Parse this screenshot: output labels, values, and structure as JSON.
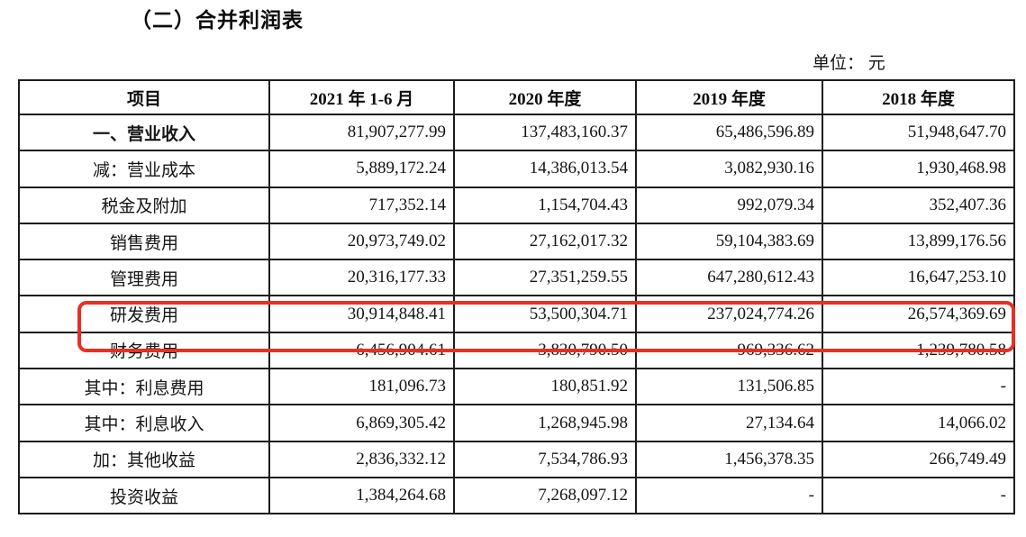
{
  "page": {
    "title": "（二）合并利润表",
    "unit_label": "单位： 元"
  },
  "table": {
    "columns": [
      "项目",
      "2021 年 1-6 月",
      "2020 年度",
      "2019 年度",
      "2018 年度"
    ],
    "rows": [
      {
        "label": "一、营业收入",
        "bold": true,
        "highlight": false,
        "values": [
          "81,907,277.99",
          "137,483,160.37",
          "65,486,596.89",
          "51,948,647.70"
        ]
      },
      {
        "label": "减：营业成本",
        "bold": false,
        "highlight": false,
        "values": [
          "5,889,172.24",
          "14,386,013.54",
          "3,082,930.16",
          "1,930,468.98"
        ]
      },
      {
        "label": "税金及附加",
        "bold": false,
        "highlight": false,
        "values": [
          "717,352.14",
          "1,154,704.43",
          "992,079.34",
          "352,407.36"
        ]
      },
      {
        "label": "销售费用",
        "bold": false,
        "highlight": false,
        "values": [
          "20,973,749.02",
          "27,162,017.32",
          "59,104,383.69",
          "13,899,176.56"
        ]
      },
      {
        "label": "管理费用",
        "bold": false,
        "highlight": false,
        "values": [
          "20,316,177.33",
          "27,351,259.55",
          "647,280,612.43",
          "16,647,253.10"
        ]
      },
      {
        "label": "研发费用",
        "bold": false,
        "highlight": true,
        "values": [
          "30,914,848.41",
          "53,500,304.71",
          "237,024,774.26",
          "26,574,369.69"
        ]
      },
      {
        "label": "财务费用",
        "bold": false,
        "highlight": false,
        "values": [
          "-6,456,904.61",
          "3,830,790.50",
          "-969,336.62",
          "-1,239,780.58"
        ]
      },
      {
        "label": "其中：利息费用",
        "bold": false,
        "highlight": false,
        "values": [
          "181,096.73",
          "180,851.92",
          "131,506.85",
          "-"
        ]
      },
      {
        "label": "其中：利息收入",
        "bold": false,
        "highlight": false,
        "values": [
          "6,869,305.42",
          "1,268,945.98",
          "27,134.64",
          "14,066.02"
        ]
      },
      {
        "label": "加：其他收益",
        "bold": false,
        "highlight": false,
        "values": [
          "2,836,332.12",
          "7,534,786.93",
          "1,456,378.35",
          "266,749.49"
        ]
      },
      {
        "label": "投资收益",
        "bold": false,
        "highlight": false,
        "values": [
          "1,384,264.68",
          "7,268,097.12",
          "-",
          "-"
        ]
      }
    ]
  },
  "highlight": {
    "target_row": "研发费用",
    "color": "#e73023"
  }
}
